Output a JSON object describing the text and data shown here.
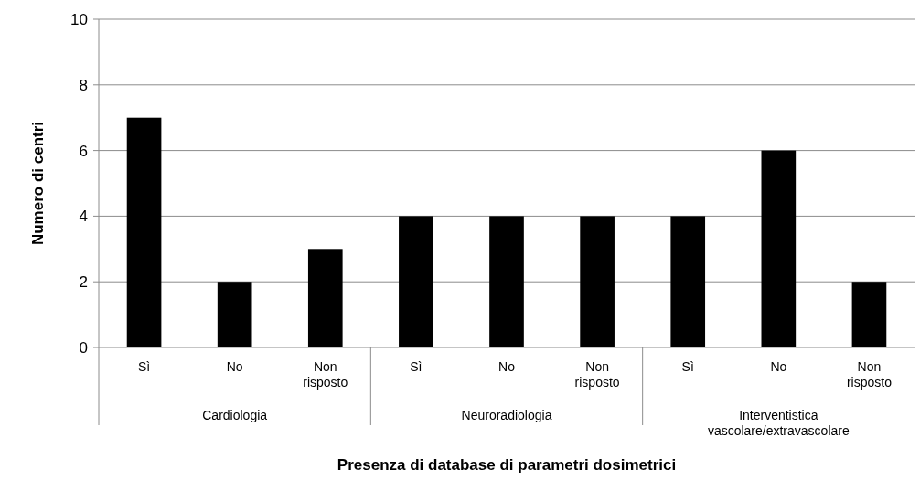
{
  "chart_data": {
    "type": "bar",
    "xlabel": "Presenza di database di parametri dosimetrici",
    "ylabel": "Numero di centri",
    "categories": [
      "Sì",
      "No",
      "Non risposto",
      "Sì",
      "No",
      "Non risposto",
      "Sì",
      "No",
      "Non risposto"
    ],
    "values": [
      7,
      2,
      3,
      4,
      4,
      4,
      4,
      6,
      2
    ],
    "color": "#000000",
    "ylim": [
      0,
      10
    ],
    "yticks": [
      0,
      2,
      4,
      6,
      8,
      10
    ],
    "grid": "y",
    "annotations": [
      "Cardiologia",
      "Neuroradiologia",
      "Interventistica vascolare/extravascolare"
    ]
  }
}
